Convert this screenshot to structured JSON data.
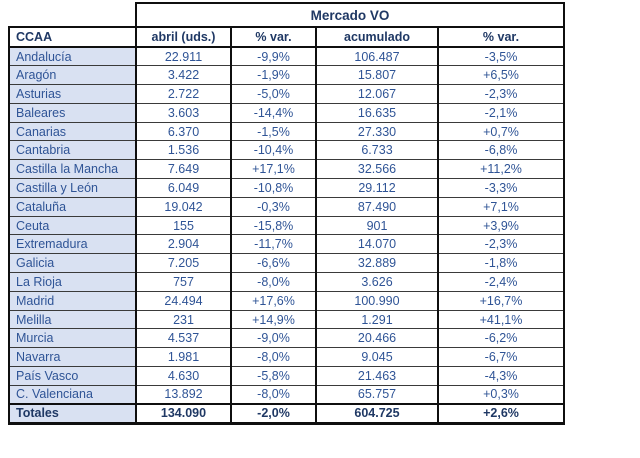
{
  "title": "Mercado VO",
  "columns": {
    "ccaa": "CCAA",
    "abril": "abril (uds.)",
    "var1": "% var.",
    "acumulado": "acumulado",
    "var2": "% var."
  },
  "rows": [
    {
      "ccaa": "Andalucía",
      "abril": "22.911",
      "var1": "-9,9%",
      "acumulado": "106.487",
      "var2": "-3,5%"
    },
    {
      "ccaa": "Aragón",
      "abril": "3.422",
      "var1": "-1,9%",
      "acumulado": "15.807",
      "var2": "+6,5%"
    },
    {
      "ccaa": "Asturias",
      "abril": "2.722",
      "var1": "-5,0%",
      "acumulado": "12.067",
      "var2": "-2,3%"
    },
    {
      "ccaa": "Baleares",
      "abril": "3.603",
      "var1": "-14,4%",
      "acumulado": "16.635",
      "var2": "-2,1%"
    },
    {
      "ccaa": "Canarias",
      "abril": "6.370",
      "var1": "-1,5%",
      "acumulado": "27.330",
      "var2": "+0,7%"
    },
    {
      "ccaa": "Cantabria",
      "abril": "1.536",
      "var1": "-10,4%",
      "acumulado": "6.733",
      "var2": "-6,8%"
    },
    {
      "ccaa": "Castilla la Mancha",
      "abril": "7.649",
      "var1": "+17,1%",
      "acumulado": "32.566",
      "var2": "+11,2%"
    },
    {
      "ccaa": "Castilla y León",
      "abril": "6.049",
      "var1": "-10,8%",
      "acumulado": "29.112",
      "var2": "-3,3%"
    },
    {
      "ccaa": "Cataluña",
      "abril": "19.042",
      "var1": "-0,3%",
      "acumulado": "87.490",
      "var2": "+7,1%"
    },
    {
      "ccaa": "Ceuta",
      "abril": "155",
      "var1": "-15,8%",
      "acumulado": "901",
      "var2": "+3,9%"
    },
    {
      "ccaa": "Extremadura",
      "abril": "2.904",
      "var1": "-11,7%",
      "acumulado": "14.070",
      "var2": "-2,3%"
    },
    {
      "ccaa": "Galicia",
      "abril": "7.205",
      "var1": "-6,6%",
      "acumulado": "32.889",
      "var2": "-1,8%"
    },
    {
      "ccaa": "La Rioja",
      "abril": "757",
      "var1": "-8,0%",
      "acumulado": "3.626",
      "var2": "-2,4%"
    },
    {
      "ccaa": "Madrid",
      "abril": "24.494",
      "var1": "+17,6%",
      "acumulado": "100.990",
      "var2": "+16,7%"
    },
    {
      "ccaa": "Melilla",
      "abril": "231",
      "var1": "+14,9%",
      "acumulado": "1.291",
      "var2": "+41,1%"
    },
    {
      "ccaa": "Murcia",
      "abril": "4.537",
      "var1": "-9,0%",
      "acumulado": "20.466",
      "var2": "-6,2%"
    },
    {
      "ccaa": "Navarra",
      "abril": "1.981",
      "var1": "-8,0%",
      "acumulado": "9.045",
      "var2": "-6,7%"
    },
    {
      "ccaa": "País Vasco",
      "abril": "4.630",
      "var1": "-5,8%",
      "acumulado": "21.463",
      "var2": "-4,3%"
    },
    {
      "ccaa": "C. Valenciana",
      "abril": "13.892",
      "var1": "-8,0%",
      "acumulado": "65.757",
      "var2": "+0,3%"
    }
  ],
  "totals": {
    "ccaa": "Totales",
    "abril": "134.090",
    "var1": "-2,0%",
    "acumulado": "604.725",
    "var2": "+2,6%"
  },
  "colors": {
    "header_text": "#1F3864",
    "data_text": "#2F5496",
    "region_column_bg": "#D9E1F2",
    "border": "#0F0F0F",
    "background": "#FFFFFF"
  }
}
